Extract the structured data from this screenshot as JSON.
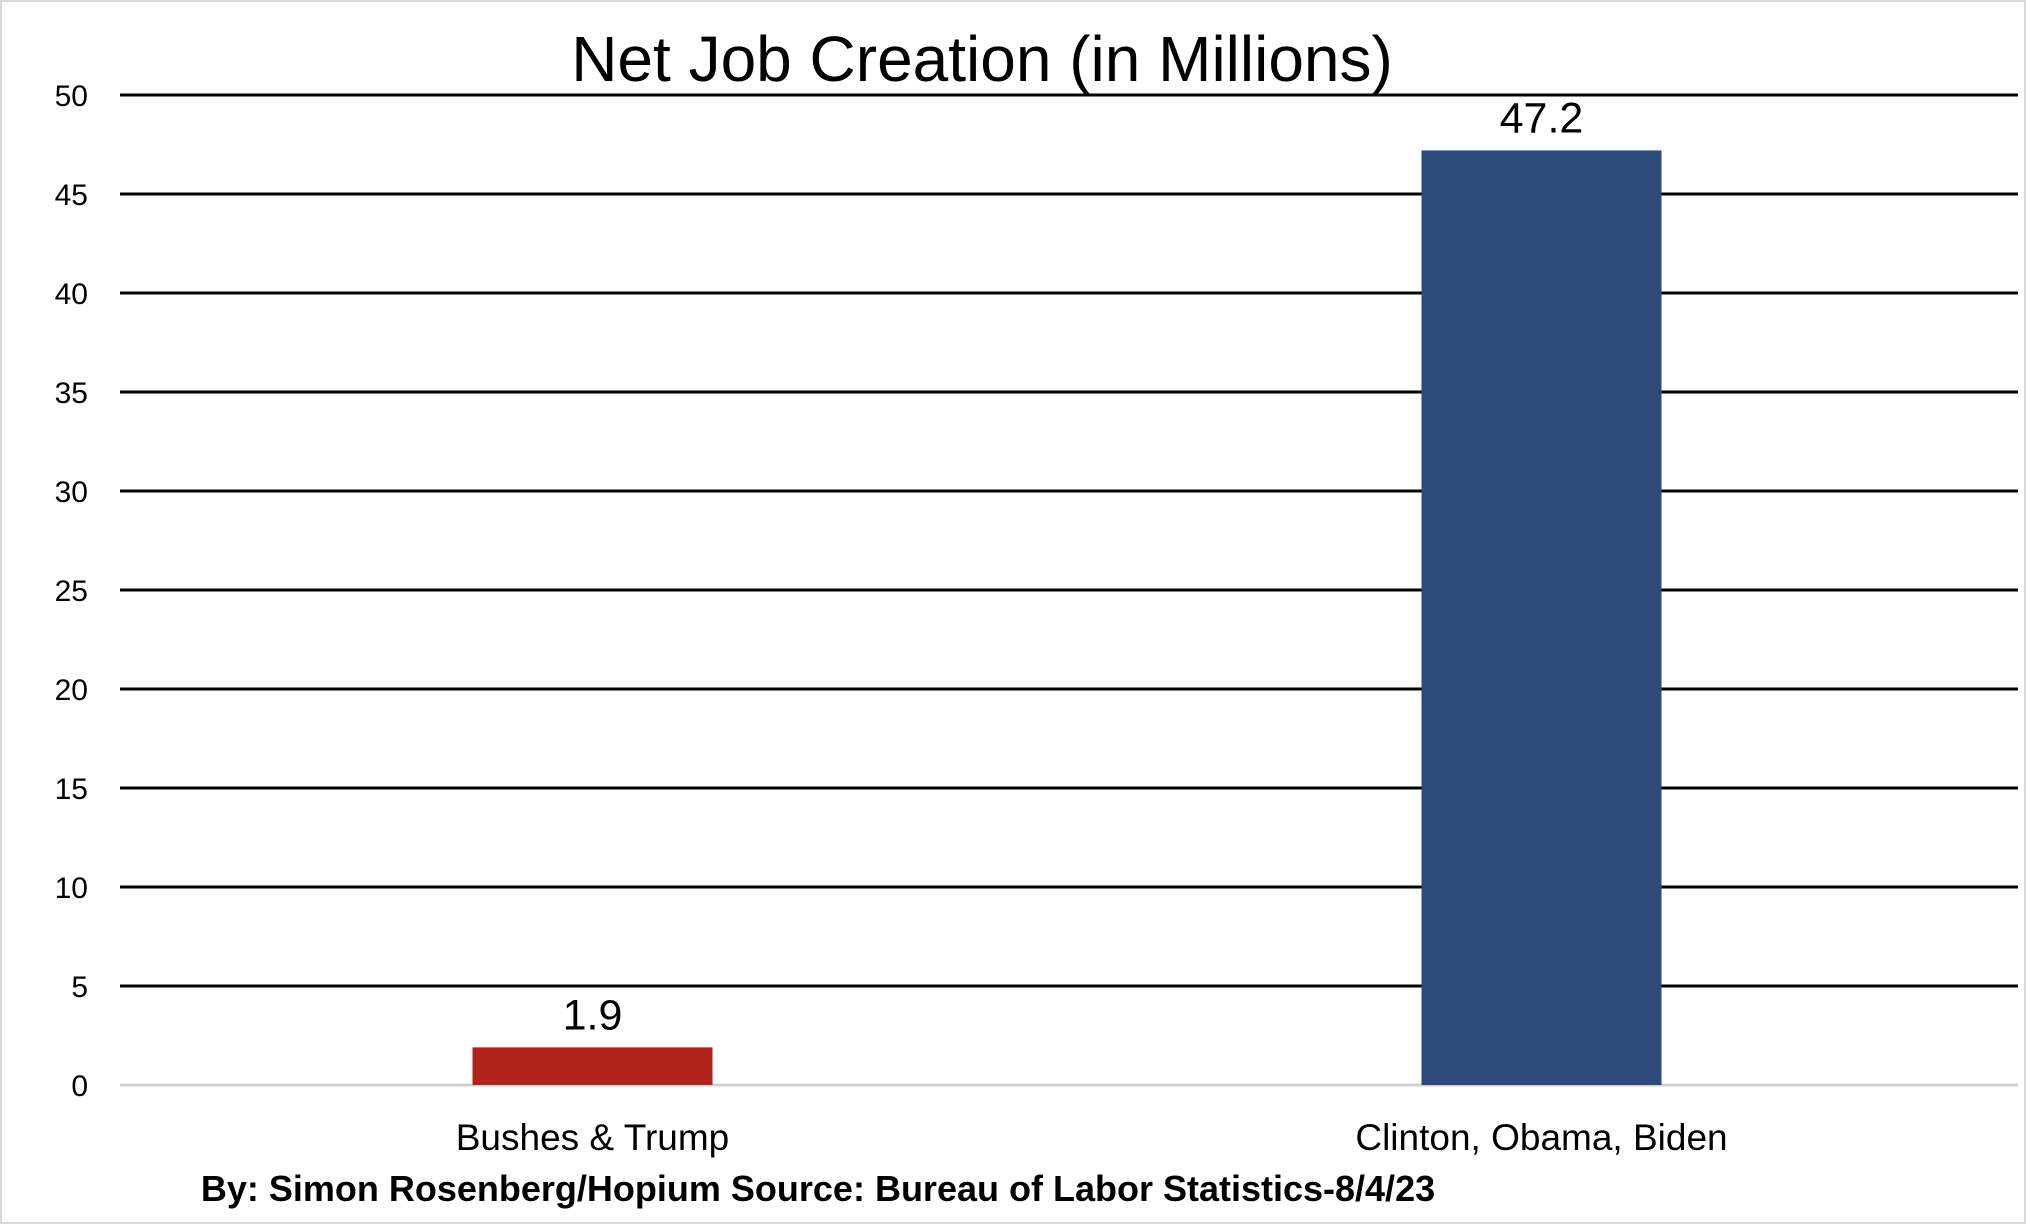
{
  "chart_data": {
    "type": "bar",
    "title": "Net Job Creation (in Millions)",
    "categories": [
      "Bushes & Trump",
      "Clinton, Obama, Biden"
    ],
    "values": [
      1.9,
      47.2
    ],
    "data_labels": [
      "1.9",
      "47.2"
    ],
    "colors": [
      "#b0241c",
      "#2d4a7a"
    ],
    "ylim": [
      0,
      50
    ],
    "yticks": [
      "0",
      "5",
      "10",
      "15",
      "20",
      "25",
      "30",
      "35",
      "40",
      "45",
      "50"
    ],
    "xlabel": "",
    "ylabel": "",
    "grid": true,
    "footer": "By: Simon Rosenberg/Hopium Source: Bureau of Labor Statistics-8/4/23"
  }
}
